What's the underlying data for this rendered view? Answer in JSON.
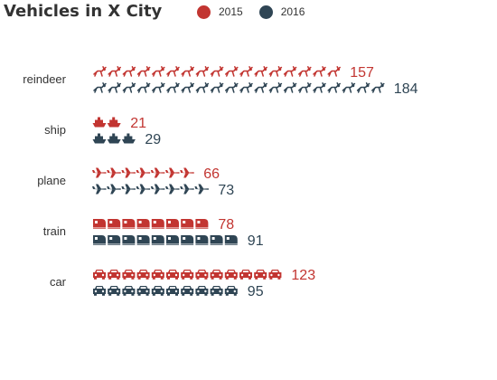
{
  "chart_data": {
    "type": "bar",
    "title": "Vehicles in X City",
    "categories": [
      "reindeer",
      "ship",
      "plane",
      "train",
      "car"
    ],
    "series": [
      {
        "name": "2015",
        "values": [
          157,
          21,
          66,
          78,
          123
        ]
      },
      {
        "name": "2016",
        "values": [
          184,
          29,
          73,
          91,
          95
        ]
      }
    ],
    "symbols": {
      "reindeer": "reindeer-icon",
      "ship": "ship-icon",
      "plane": "plane-icon",
      "train": "train-icon",
      "car": "car-icon"
    },
    "legend_position": "top",
    "grid": false
  },
  "colors": {
    "series_2015": "#c23531",
    "series_2016": "#2f4554",
    "title": "#333333",
    "category_label": "#333333"
  }
}
